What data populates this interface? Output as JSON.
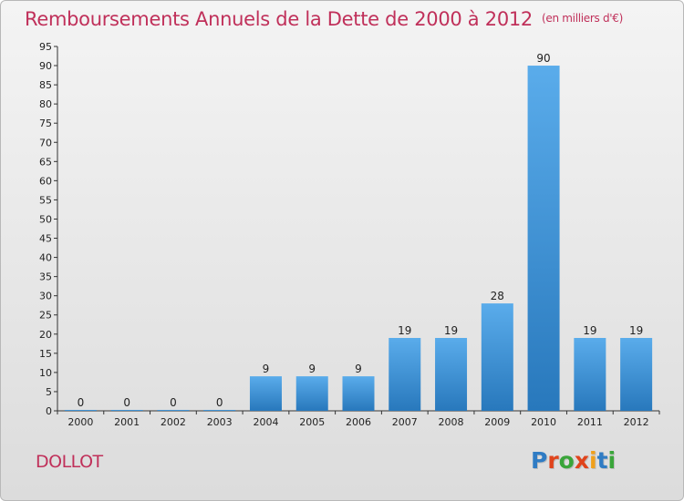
{
  "header": {
    "title": "Remboursements Annuels de la Dette de 2000 à 2012",
    "unit": "(en milliers d'€)"
  },
  "footer": {
    "place": "DOLLOT",
    "logo": "Proxiti"
  },
  "colors": {
    "bar_top": "#5aaceb",
    "bar_bottom": "#2878bc",
    "title": "#c0305a",
    "logo": [
      "#2f7cc4",
      "#e0441c",
      "#3aa53a",
      "#e0441c",
      "#f0a01c",
      "#2f7cc4",
      "#3aa53a"
    ]
  },
  "chart_data": {
    "type": "bar",
    "title": "Remboursements Annuels de la Dette de 2000 à 2012",
    "xlabel": "",
    "ylabel": "",
    "categories": [
      "2000",
      "2001",
      "2002",
      "2003",
      "2004",
      "2005",
      "2006",
      "2007",
      "2008",
      "2009",
      "2010",
      "2011",
      "2012"
    ],
    "values": [
      0,
      0,
      0,
      0,
      9,
      9,
      9,
      19,
      19,
      28,
      90,
      19,
      19
    ],
    "data_labels": [
      "0",
      "0",
      "0",
      "0",
      "9",
      "9",
      "9",
      "19",
      "19",
      "28",
      "90",
      "19",
      "19"
    ],
    "ylim": [
      0,
      95
    ],
    "yticks": [
      0,
      5,
      10,
      15,
      20,
      25,
      30,
      35,
      40,
      45,
      50,
      55,
      60,
      65,
      70,
      75,
      80,
      85,
      90,
      95
    ],
    "grid": false,
    "legend": "none"
  }
}
